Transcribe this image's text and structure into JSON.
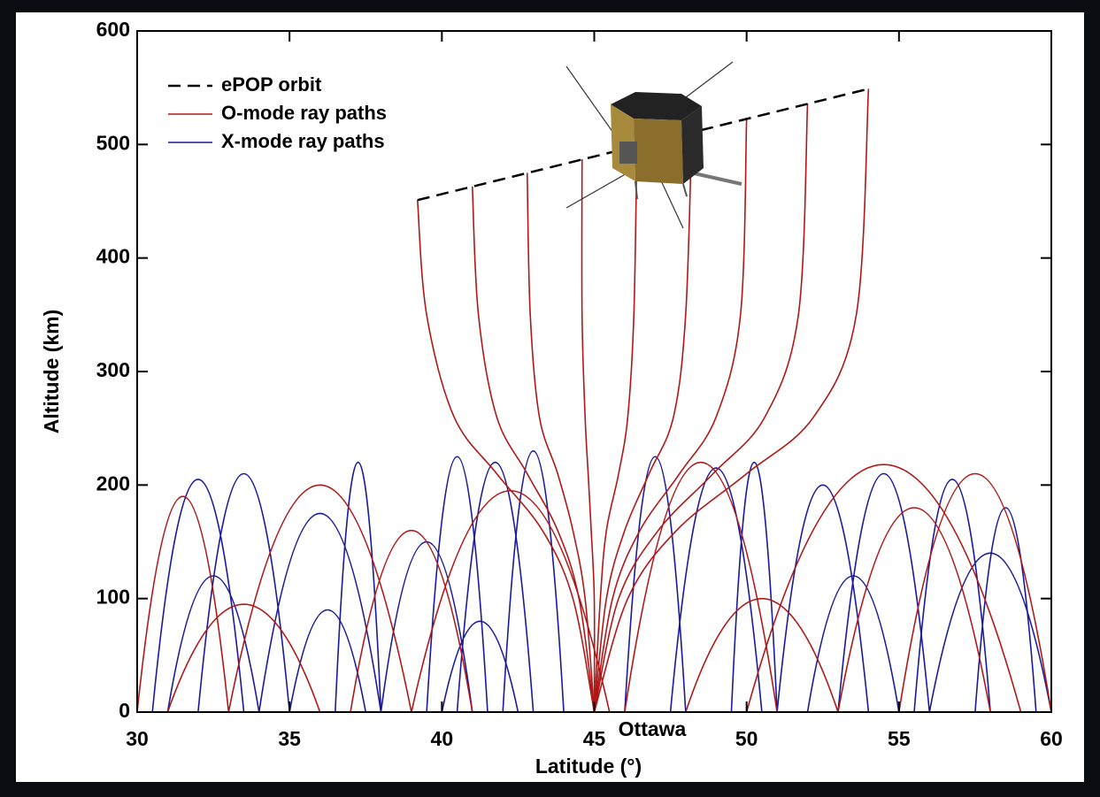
{
  "chart_data": {
    "type": "line",
    "xlabel": "Latitude (°)",
    "ylabel": "Altitude (km)",
    "xlim": [
      30,
      60
    ],
    "ylim": [
      0,
      600
    ],
    "xticks": [
      30,
      35,
      40,
      45,
      50,
      55,
      60
    ],
    "yticks": [
      0,
      100,
      200,
      300,
      400,
      500,
      600
    ],
    "legend": "upper left",
    "annotations": [
      {
        "text": "Ottawa"
      }
    ],
    "series": [
      {
        "name": "ePOP orbit",
        "color": "#000000",
        "dashed": true,
        "x": [
          39.2,
          54
        ],
        "values": [
          451,
          549
        ]
      },
      {
        "name": "O-mode ray paths",
        "color": "#b01818",
        "paths": [
          {
            "x": [
              30,
              31.5,
              33
            ],
            "values": [
              0,
              190,
              0
            ]
          },
          {
            "x": [
              33,
              36,
              39
            ],
            "values": [
              0,
              200,
              0
            ]
          },
          {
            "x": [
              37,
              39,
              41
            ],
            "values": [
              0,
              160,
              0
            ]
          },
          {
            "x": [
              39,
              42.25,
              45.5
            ],
            "values": [
              0,
              195,
              0
            ]
          },
          {
            "x": [
              46,
              48.5,
              51
            ],
            "values": [
              0,
              220,
              0
            ]
          },
          {
            "x": [
              50,
              54.5,
              59
            ],
            "values": [
              0,
              218,
              0
            ]
          },
          {
            "x": [
              53,
              55.5,
              58
            ],
            "values": [
              0,
              180,
              0
            ]
          },
          {
            "x": [
              55,
              57.5,
              60
            ],
            "values": [
              0,
              210,
              0
            ]
          },
          {
            "x": [
              31,
              33.5,
              36
            ],
            "values": [
              0,
              95,
              0
            ]
          },
          {
            "x": [
              48,
              50.5,
              53
            ],
            "values": [
              0,
              100,
              0
            ]
          },
          {
            "x": [
              45,
              44.3,
              43.3,
              41.8,
              40.4,
              39.5,
              39.2
            ],
            "values": [
              0,
              100,
              160,
              210,
              260,
              350,
              451
            ]
          },
          {
            "x": [
              45,
              44.5,
              43.8,
              42.8,
              41.8,
              41.2,
              41
            ],
            "values": [
              0,
              100,
              160,
              210,
              260,
              350,
              463
            ]
          },
          {
            "x": [
              45,
              44.7,
              44.3,
              43.8,
              43.2,
              42.9,
              42.8
            ],
            "values": [
              0,
              100,
              160,
              210,
              260,
              350,
              475
            ]
          },
          {
            "x": [
              45,
              45,
              44.9,
              44.8,
              44.7,
              44.6,
              44.6
            ],
            "values": [
              0,
              100,
              160,
              210,
              260,
              350,
              487
            ]
          },
          {
            "x": [
              45,
              45.2,
              45.4,
              45.8,
              46.1,
              46.3,
              46.4
            ],
            "values": [
              0,
              100,
              160,
              210,
              260,
              350,
              499
            ]
          },
          {
            "x": [
              45,
              45.4,
              46,
              46.8,
              47.6,
              48,
              48.2
            ],
            "values": [
              0,
              100,
              160,
              210,
              260,
              350,
              511
            ]
          },
          {
            "x": [
              45,
              45.6,
              46.5,
              47.8,
              49,
              49.8,
              50
            ],
            "values": [
              0,
              100,
              160,
              210,
              260,
              350,
              523
            ]
          },
          {
            "x": [
              45,
              45.8,
              47.1,
              48.9,
              50.6,
              51.7,
              52
            ],
            "values": [
              0,
              100,
              160,
              210,
              260,
              350,
              536
            ]
          },
          {
            "x": [
              45,
              46.1,
              47.7,
              50,
              52.2,
              53.6,
              54
            ],
            "values": [
              0,
              100,
              160,
              210,
              260,
              350,
              549
            ]
          }
        ]
      },
      {
        "name": "X-mode ray paths",
        "color": "#1a1a9c",
        "paths": [
          {
            "x": [
              30.5,
              32,
              33.5
            ],
            "values": [
              0,
              205,
              0
            ]
          },
          {
            "x": [
              32,
              33.5,
              35
            ],
            "values": [
              0,
              210,
              0
            ]
          },
          {
            "x": [
              34,
              36,
              38
            ],
            "values": [
              0,
              175,
              0
            ]
          },
          {
            "x": [
              36.5,
              37.25,
              38
            ],
            "values": [
              0,
              220,
              0
            ]
          },
          {
            "x": [
              38,
              39.5,
              41
            ],
            "values": [
              0,
              150,
              0
            ]
          },
          {
            "x": [
              39.5,
              40.5,
              41.5
            ],
            "values": [
              0,
              225,
              0
            ]
          },
          {
            "x": [
              40.5,
              41.75,
              43
            ],
            "values": [
              0,
              220,
              0
            ]
          },
          {
            "x": [
              42,
              43,
              44
            ],
            "values": [
              0,
              230,
              0
            ]
          },
          {
            "x": [
              46,
              47,
              48
            ],
            "values": [
              0,
              225,
              0
            ]
          },
          {
            "x": [
              47.5,
              49,
              50.5
            ],
            "values": [
              0,
              215,
              0
            ]
          },
          {
            "x": [
              49.5,
              50.25,
              51
            ],
            "values": [
              0,
              220,
              0
            ]
          },
          {
            "x": [
              51,
              52.5,
              54
            ],
            "values": [
              0,
              200,
              0
            ]
          },
          {
            "x": [
              53,
              54.5,
              56
            ],
            "values": [
              0,
              210,
              0
            ]
          },
          {
            "x": [
              55.5,
              56.75,
              58
            ],
            "values": [
              0,
              205,
              0
            ]
          },
          {
            "x": [
              56,
              58,
              60
            ],
            "values": [
              0,
              140,
              0
            ]
          },
          {
            "x": [
              57.5,
              58.5,
              59.5
            ],
            "values": [
              0,
              180,
              0
            ]
          },
          {
            "x": [
              31,
              32.5,
              34
            ],
            "values": [
              0,
              120,
              0
            ]
          },
          {
            "x": [
              35,
              36.25,
              37.5
            ],
            "values": [
              0,
              90,
              0
            ]
          },
          {
            "x": [
              52,
              53.5,
              55
            ],
            "values": [
              0,
              120,
              0
            ]
          },
          {
            "x": [
              40,
              41.25,
              42.5
            ],
            "values": [
              0,
              80,
              0
            ]
          }
        ]
      }
    ]
  }
}
